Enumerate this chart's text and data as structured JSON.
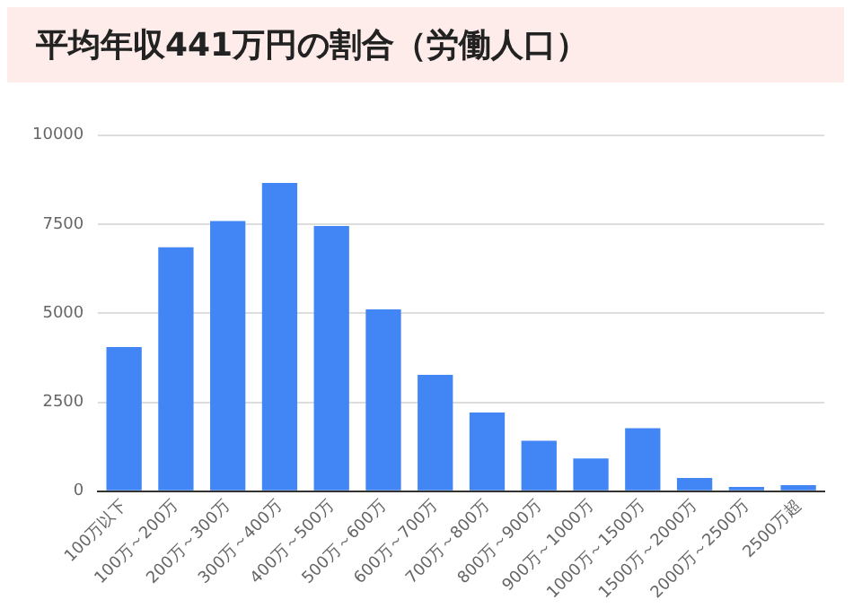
{
  "chart_data": {
    "type": "bar",
    "title": "平均年収441万円の割合（労働人口）",
    "categories": [
      "100万以下",
      "100万～200万",
      "200万～300万",
      "300万～400万",
      "400万～500万",
      "500万～600万",
      "600万～700万",
      "700万～800万",
      "800万～900万",
      "900万～1000万",
      "1000万～1500万",
      "1500万～2000万",
      "2000万～2500万",
      "2500万超"
    ],
    "values": [
      4050,
      6850,
      7590,
      8660,
      7450,
      5110,
      3270,
      2210,
      1420,
      920,
      1770,
      370,
      120,
      170
    ],
    "color": "#4285f4",
    "ylim": [
      0,
      10000
    ],
    "yticks": [
      0,
      2500,
      5000,
      7500,
      10000
    ],
    "grid": "y",
    "legend": false
  }
}
